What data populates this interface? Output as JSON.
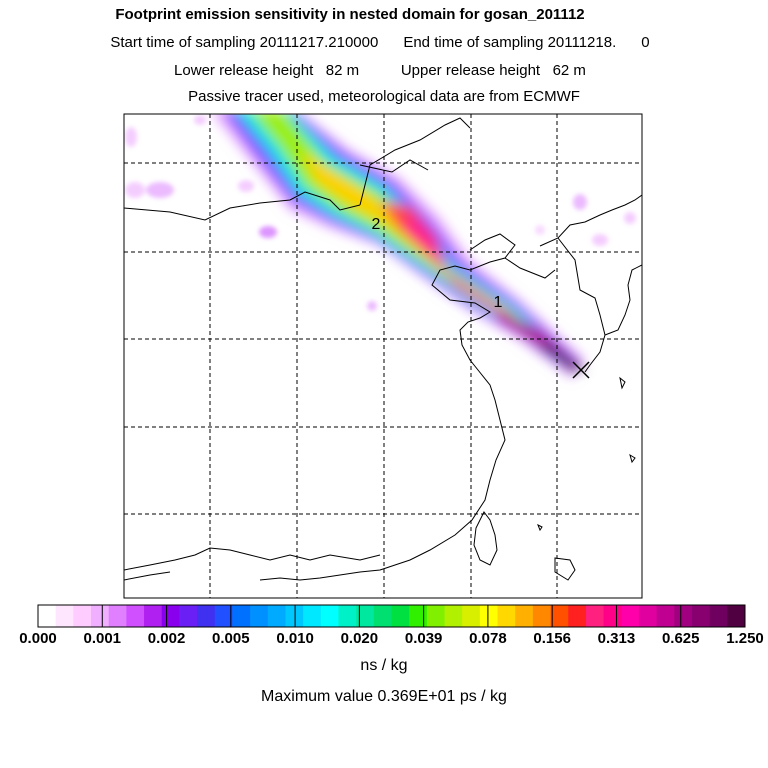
{
  "header": {
    "title": "Footprint emission sensitivity in nested domain for gosan_201112",
    "sampling": "Start time of sampling 20111217.210000      End time of sampling 20111218.      0",
    "heights": "Lower release height   82 m          Upper release height   62 m",
    "tracer": "Passive tracer used, meteorological data are from ECMWF"
  },
  "map": {
    "markers": [
      {
        "label": "2"
      },
      {
        "label": "1"
      }
    ],
    "release_site_symbol": "x-marker-icon"
  },
  "colorbar": {
    "colors": [
      "#ffffff",
      "#ffe6ff",
      "#ffccff",
      "#f0b0ff",
      "#e080ff",
      "#d050ff",
      "#b020f0",
      "#8800ee",
      "#6a20f5",
      "#4030f0",
      "#2050ff",
      "#0070ff",
      "#0090ff",
      "#00aaff",
      "#00c8ff",
      "#00e8ff",
      "#00ffff",
      "#00f0c8",
      "#00e8a0",
      "#00e070",
      "#00e040",
      "#30f000",
      "#80f000",
      "#b0f000",
      "#d8f000",
      "#ffff00",
      "#ffd800",
      "#ffb000",
      "#ff8800",
      "#ff5000",
      "#ff2020",
      "#ff2080",
      "#ff0088",
      "#ff00aa",
      "#e000a0",
      "#c00090",
      "#a00080",
      "#880070",
      "#700060",
      "#500040"
    ],
    "tick_labels": [
      "0.000",
      "0.001",
      "0.002",
      "0.005",
      "0.010",
      "0.020",
      "0.039",
      "0.078",
      "0.156",
      "0.313",
      "0.625",
      "1.250"
    ],
    "units": "ns / kg"
  },
  "footer": {
    "max_value": "Maximum value  0.369E+01 ps / kg"
  }
}
